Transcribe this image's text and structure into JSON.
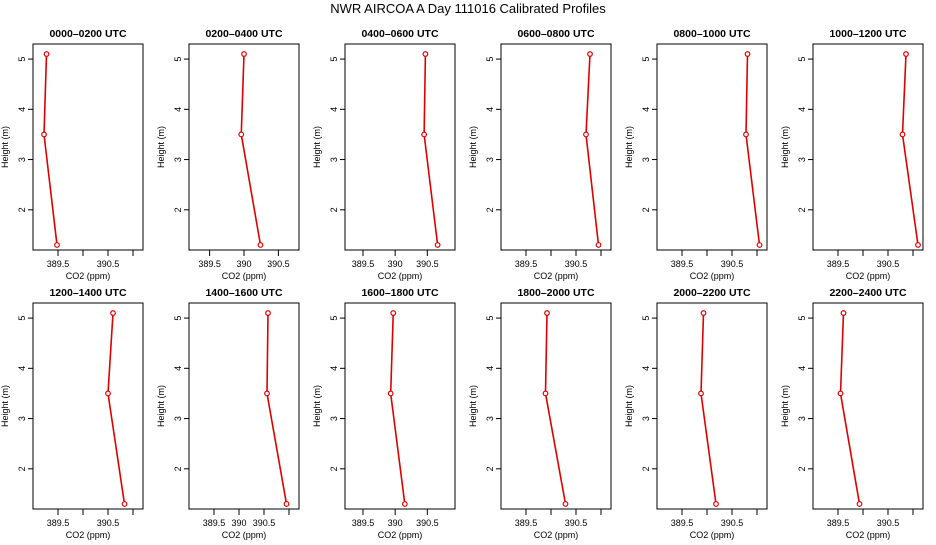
{
  "page_title": "NWR AIRCOA A  Day 111016  Calibrated Profiles",
  "chart_data": [
    {
      "type": "line",
      "title": "0000–0200 UTC",
      "xlabel": "CO2 (ppm)",
      "ylabel": "Height (m)",
      "xlim": [
        389.0,
        391.2
      ],
      "ylim": [
        1.2,
        5.3
      ],
      "xticks": [
        "389.5",
        "390.5"
      ],
      "yticks": [
        "2",
        "3",
        "4",
        "5"
      ],
      "series": [
        {
          "points": [
            {
              "x": 389.48,
              "y": 1.3
            },
            {
              "x": 389.22,
              "y": 3.5
            },
            {
              "x": 389.27,
              "y": 5.1
            }
          ]
        }
      ]
    },
    {
      "type": "line",
      "title": "0200–0400 UTC",
      "xlabel": "CO2 (ppm)",
      "ylabel": "Height (m)",
      "xlim": [
        389.2,
        390.8
      ],
      "ylim": [
        1.2,
        5.3
      ],
      "xticks": [
        "389.5",
        "390",
        "390.5"
      ],
      "yticks": [
        "2",
        "3",
        "4",
        "5"
      ],
      "series": [
        {
          "points": [
            {
              "x": 390.24,
              "y": 1.3
            },
            {
              "x": 389.96,
              "y": 3.5
            },
            {
              "x": 390.0,
              "y": 5.1
            }
          ]
        }
      ]
    },
    {
      "type": "line",
      "title": "0400–0600 UTC",
      "xlabel": "CO2 (ppm)",
      "ylabel": "Height (m)",
      "xlim": [
        389.22,
        390.93
      ],
      "ylim": [
        1.2,
        5.3
      ],
      "xticks": [
        "389.5",
        "390",
        "390.5"
      ],
      "yticks": [
        "2",
        "3",
        "4",
        "5"
      ],
      "series": [
        {
          "points": [
            {
              "x": 390.66,
              "y": 1.3
            },
            {
              "x": 390.45,
              "y": 3.5
            },
            {
              "x": 390.47,
              "y": 5.1
            }
          ]
        }
      ]
    },
    {
      "type": "line",
      "title": "0600–0800 UTC",
      "xlabel": "CO2 (ppm)",
      "ylabel": "Height (m)",
      "xlim": [
        389.0,
        391.2
      ],
      "ylim": [
        1.2,
        5.3
      ],
      "xticks": [
        "389.5",
        "390.5"
      ],
      "yticks": [
        "2",
        "3",
        "4",
        "5"
      ],
      "series": [
        {
          "points": [
            {
              "x": 390.95,
              "y": 1.3
            },
            {
              "x": 390.7,
              "y": 3.5
            },
            {
              "x": 390.78,
              "y": 5.1
            }
          ]
        }
      ]
    },
    {
      "type": "line",
      "title": "0800–1000 UTC",
      "xlabel": "CO2 (ppm)",
      "ylabel": "Height (m)",
      "xlim": [
        389.0,
        391.2
      ],
      "ylim": [
        1.2,
        5.3
      ],
      "xticks": [
        "389.5",
        "390.5"
      ],
      "yticks": [
        "2",
        "3",
        "4",
        "5"
      ],
      "series": [
        {
          "points": [
            {
              "x": 391.05,
              "y": 1.3
            },
            {
              "x": 390.78,
              "y": 3.5
            },
            {
              "x": 390.81,
              "y": 5.1
            }
          ]
        }
      ]
    },
    {
      "type": "line",
      "title": "1000–1200 UTC",
      "xlabel": "CO2 (ppm)",
      "ylabel": "Height (m)",
      "xlim": [
        389.0,
        391.2
      ],
      "ylim": [
        1.2,
        5.3
      ],
      "xticks": [
        "389.5",
        "390.5"
      ],
      "yticks": [
        "2",
        "3",
        "4",
        "5"
      ],
      "series": [
        {
          "points": [
            {
              "x": 391.1,
              "y": 1.3
            },
            {
              "x": 390.79,
              "y": 3.5
            },
            {
              "x": 390.86,
              "y": 5.1
            }
          ]
        }
      ]
    },
    {
      "type": "line",
      "title": "1200–1400 UTC",
      "xlabel": "CO2 (ppm)",
      "ylabel": "Height (m)",
      "xlim": [
        389.0,
        391.2
      ],
      "ylim": [
        1.2,
        5.3
      ],
      "xticks": [
        "389.5",
        "390.5"
      ],
      "yticks": [
        "2",
        "3",
        "4",
        "5"
      ],
      "series": [
        {
          "points": [
            {
              "x": 390.83,
              "y": 1.3
            },
            {
              "x": 390.5,
              "y": 3.5
            },
            {
              "x": 390.6,
              "y": 5.1
            }
          ]
        }
      ]
    },
    {
      "type": "line",
      "title": "1400–1600 UTC",
      "xlabel": "CO2 (ppm)",
      "ylabel": "Height (m)",
      "xlim": [
        389.0,
        391.2
      ],
      "ylim": [
        1.2,
        5.3
      ],
      "xticks": [
        "389.5",
        "390",
        "390.5"
      ],
      "yticks": [
        "2",
        "3",
        "4",
        "5"
      ],
      "series": [
        {
          "points": [
            {
              "x": 390.95,
              "y": 1.3
            },
            {
              "x": 390.56,
              "y": 3.5
            },
            {
              "x": 390.58,
              "y": 5.1
            }
          ]
        }
      ]
    },
    {
      "type": "line",
      "title": "1600–1800 UTC",
      "xlabel": "CO2 (ppm)",
      "ylabel": "Height (m)",
      "xlim": [
        389.22,
        390.93
      ],
      "ylim": [
        1.2,
        5.3
      ],
      "xticks": [
        "389.5",
        "390",
        "390.5"
      ],
      "yticks": [
        "2",
        "3",
        "4",
        "5"
      ],
      "series": [
        {
          "points": [
            {
              "x": 390.15,
              "y": 1.3
            },
            {
              "x": 389.93,
              "y": 3.5
            },
            {
              "x": 389.97,
              "y": 5.1
            }
          ]
        }
      ]
    },
    {
      "type": "line",
      "title": "1800–2000 UTC",
      "xlabel": "CO2 (ppm)",
      "ylabel": "Height (m)",
      "xlim": [
        389.0,
        391.2
      ],
      "ylim": [
        1.2,
        5.3
      ],
      "xticks": [
        "389.5",
        "390.5"
      ],
      "yticks": [
        "2",
        "3",
        "4",
        "5"
      ],
      "series": [
        {
          "points": [
            {
              "x": 390.29,
              "y": 1.3
            },
            {
              "x": 389.89,
              "y": 3.5
            },
            {
              "x": 389.92,
              "y": 5.1
            }
          ]
        }
      ]
    },
    {
      "type": "line",
      "title": "2000–2200 UTC",
      "xlabel": "CO2 (ppm)",
      "ylabel": "Height (m)",
      "xlim": [
        389.0,
        391.2
      ],
      "ylim": [
        1.2,
        5.3
      ],
      "xticks": [
        "389.5",
        "390.5"
      ],
      "yticks": [
        "2",
        "3",
        "4",
        "5"
      ],
      "series": [
        {
          "points": [
            {
              "x": 390.18,
              "y": 1.3
            },
            {
              "x": 389.88,
              "y": 3.5
            },
            {
              "x": 389.93,
              "y": 5.1
            }
          ]
        }
      ]
    },
    {
      "type": "line",
      "title": "2200–2400 UTC",
      "xlabel": "CO2 (ppm)",
      "ylabel": "Height (m)",
      "xlim": [
        389.0,
        391.2
      ],
      "ylim": [
        1.2,
        5.3
      ],
      "xticks": [
        "389.5",
        "390.5"
      ],
      "yticks": [
        "2",
        "3",
        "4",
        "5"
      ],
      "series": [
        {
          "points": [
            {
              "x": 389.93,
              "y": 1.3
            },
            {
              "x": 389.55,
              "y": 3.5
            },
            {
              "x": 389.61,
              "y": 5.1
            }
          ]
        }
      ]
    }
  ]
}
